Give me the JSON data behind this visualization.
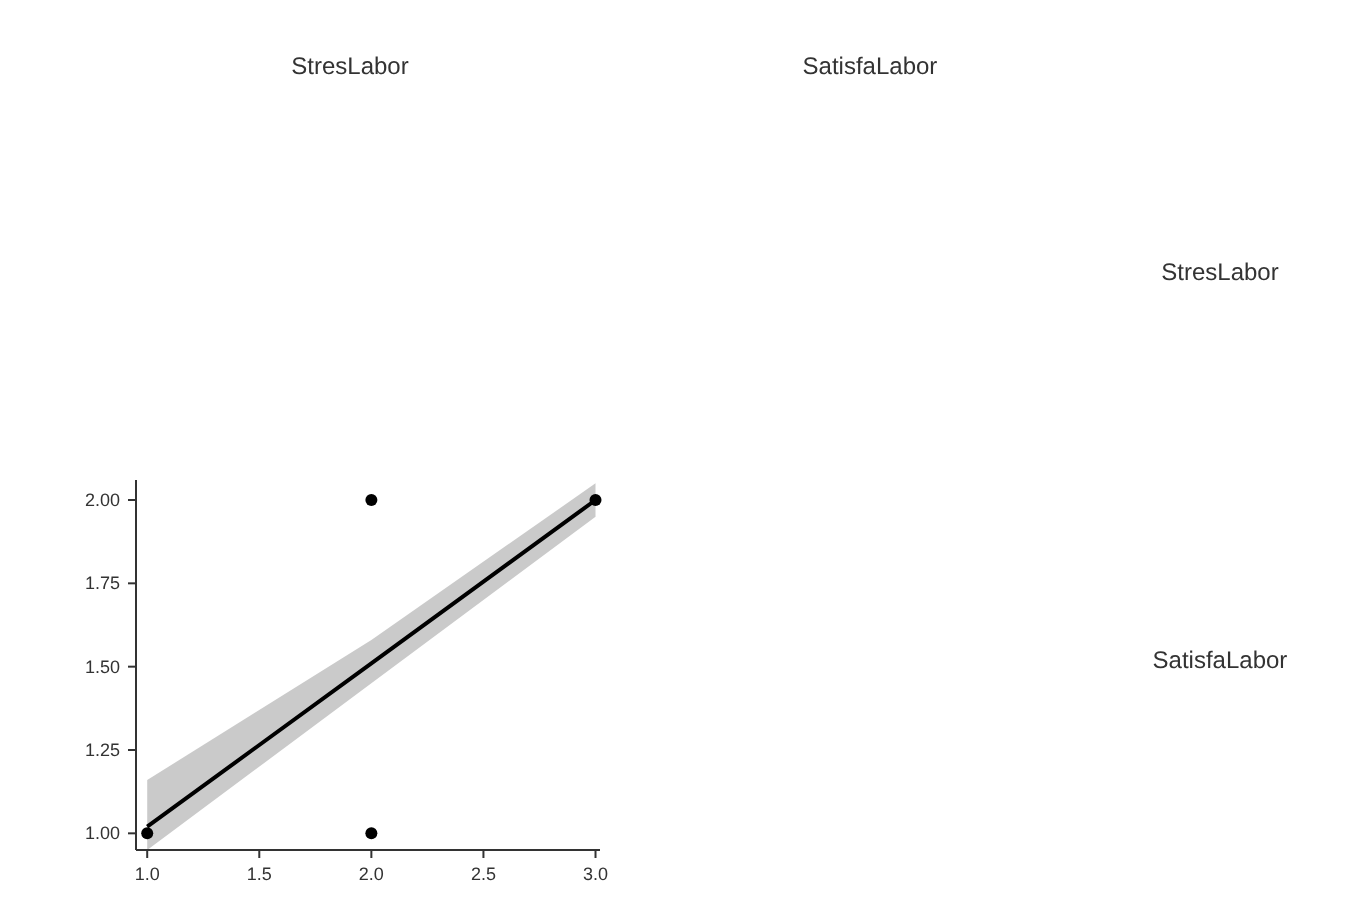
{
  "chart_data": {
    "type": "scatter",
    "annotations": [
      "StresLabor",
      "SatisfaLabor",
      "StresLabor",
      "SatisfaLabor"
    ],
    "xlim": [
      0.95,
      3.02
    ],
    "ylim": [
      0.95,
      2.06
    ],
    "xticks": [
      {
        "value": 1,
        "label": "1.0"
      },
      {
        "value": 1.5,
        "label": "1.5"
      },
      {
        "value": 2,
        "label": "2.0"
      },
      {
        "value": 2.5,
        "label": "2.5"
      },
      {
        "value": 3,
        "label": "3.0"
      }
    ],
    "yticks": [
      {
        "value": 1,
        "label": "1.00"
      },
      {
        "value": 1.25,
        "label": "1.25"
      },
      {
        "value": 1.5,
        "label": "1.50"
      },
      {
        "value": 1.75,
        "label": "1.75"
      },
      {
        "value": 2,
        "label": "2.00"
      }
    ],
    "grid": false,
    "marker": "circle",
    "series": [
      {
        "color": "#000000",
        "x": [
          1,
          2,
          2,
          3
        ],
        "values": [
          1,
          2,
          1,
          2
        ]
      },
      {
        "type": "line",
        "color": "#000000",
        "x": [
          1,
          2,
          3
        ],
        "values": [
          1.02,
          1.51,
          2.0
        ],
        "lower": [
          0.95,
          1.45,
          1.95
        ],
        "upper": [
          1.16,
          1.58,
          2.05
        ],
        "marker": "none",
        "line_style": "solid"
      }
    ]
  }
}
